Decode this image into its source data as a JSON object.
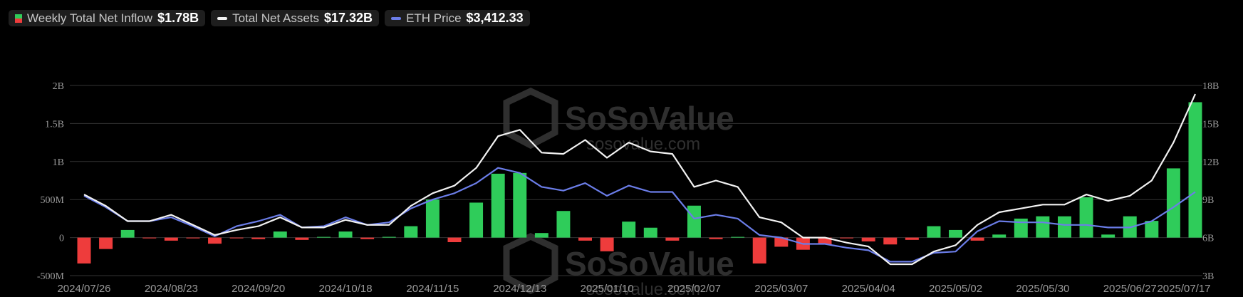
{
  "legend": {
    "inflow": {
      "label": "Weekly Total Net Inflow",
      "value": "$1.78B"
    },
    "assets": {
      "label": "Total Net Assets",
      "value": "$17.32B"
    },
    "price": {
      "label": "ETH Price",
      "value": "$3,412.33"
    }
  },
  "watermark": {
    "brand": "SoSoValue",
    "url": "sosovalue.com"
  },
  "colors": {
    "positive": "#2fcc5a",
    "negative": "#ee3c3c",
    "assets_line": "#f2f2f2",
    "price_line": "#6b7de8",
    "grid": "#333333",
    "axis_text": "#9a9a9a"
  },
  "chart_data": {
    "type": "bar",
    "x_labels": [
      "2024/07/26",
      "2024/08/23",
      "2024/09/20",
      "2024/10/18",
      "2024/11/15",
      "2024/12/13",
      "2025/01/10",
      "2025/02/07",
      "2025/03/07",
      "2025/04/04",
      "2025/05/02",
      "2025/05/30",
      "2025/06/27",
      "2025/07/17"
    ],
    "x_label_index": [
      0,
      4,
      8,
      12,
      16,
      20,
      24,
      28,
      32,
      36,
      40,
      44,
      48,
      51
    ],
    "y_left": {
      "ticks": [
        "-500M",
        "0",
        "500M",
        "1B",
        "1.5B",
        "2B"
      ],
      "range": [
        -0.5,
        2.0
      ],
      "unit": "B"
    },
    "y_right": {
      "ticks": [
        "3B",
        "6B",
        "9B",
        "12B",
        "15B",
        "18B"
      ],
      "range": [
        3,
        18
      ],
      "unit": "B"
    },
    "grid": true,
    "series": [
      {
        "name": "Weekly Total Net Inflow",
        "kind": "bar",
        "axis": "left",
        "values": [
          -0.34,
          -0.15,
          0.1,
          -0.01,
          -0.04,
          -0.01,
          -0.08,
          -0.01,
          -0.02,
          0.08,
          -0.03,
          0.0,
          0.08,
          -0.02,
          0.01,
          0.15,
          0.5,
          -0.06,
          0.46,
          0.84,
          0.85,
          0.06,
          0.35,
          -0.04,
          -0.18,
          0.21,
          0.13,
          -0.04,
          0.42,
          -0.02,
          0.0,
          -0.34,
          -0.12,
          -0.16,
          -0.09,
          -0.01,
          -0.05,
          -0.09,
          -0.03,
          0.15,
          0.1,
          -0.04,
          0.04,
          0.25,
          0.28,
          0.28,
          0.53,
          0.04,
          0.28,
          0.22,
          0.91,
          1.78
        ]
      },
      {
        "name": "Total Net Assets",
        "kind": "line",
        "axis": "right",
        "values": [
          9.4,
          8.5,
          7.3,
          7.3,
          7.8,
          7.0,
          6.2,
          6.6,
          6.9,
          7.6,
          6.8,
          6.8,
          7.4,
          7.0,
          7.0,
          8.5,
          9.5,
          10.1,
          11.5,
          14.0,
          14.5,
          12.7,
          12.6,
          13.7,
          12.3,
          13.5,
          12.8,
          12.6,
          10.0,
          10.5,
          10.0,
          7.6,
          7.2,
          6.0,
          6.0,
          5.6,
          5.3,
          3.9,
          3.9,
          4.9,
          5.4,
          7.0,
          8.0,
          8.3,
          8.6,
          8.6,
          9.4,
          8.9,
          9.3,
          10.5,
          13.5,
          17.32
        ]
      },
      {
        "name": "ETH Price",
        "kind": "line",
        "axis": "right",
        "values": [
          9.3,
          8.4,
          7.3,
          7.3,
          7.6,
          6.9,
          6.1,
          6.9,
          7.3,
          7.8,
          6.8,
          6.9,
          7.6,
          7.0,
          7.2,
          8.3,
          9.0,
          9.5,
          10.3,
          11.5,
          11.1,
          10.0,
          9.7,
          10.3,
          9.3,
          10.1,
          9.6,
          9.6,
          7.5,
          7.8,
          7.5,
          6.2,
          6.0,
          5.5,
          5.5,
          5.2,
          5.0,
          4.1,
          4.1,
          4.8,
          4.9,
          6.5,
          7.3,
          7.2,
          7.2,
          7.0,
          7.0,
          6.8,
          6.8,
          7.3,
          8.4,
          9.6
        ]
      }
    ]
  }
}
